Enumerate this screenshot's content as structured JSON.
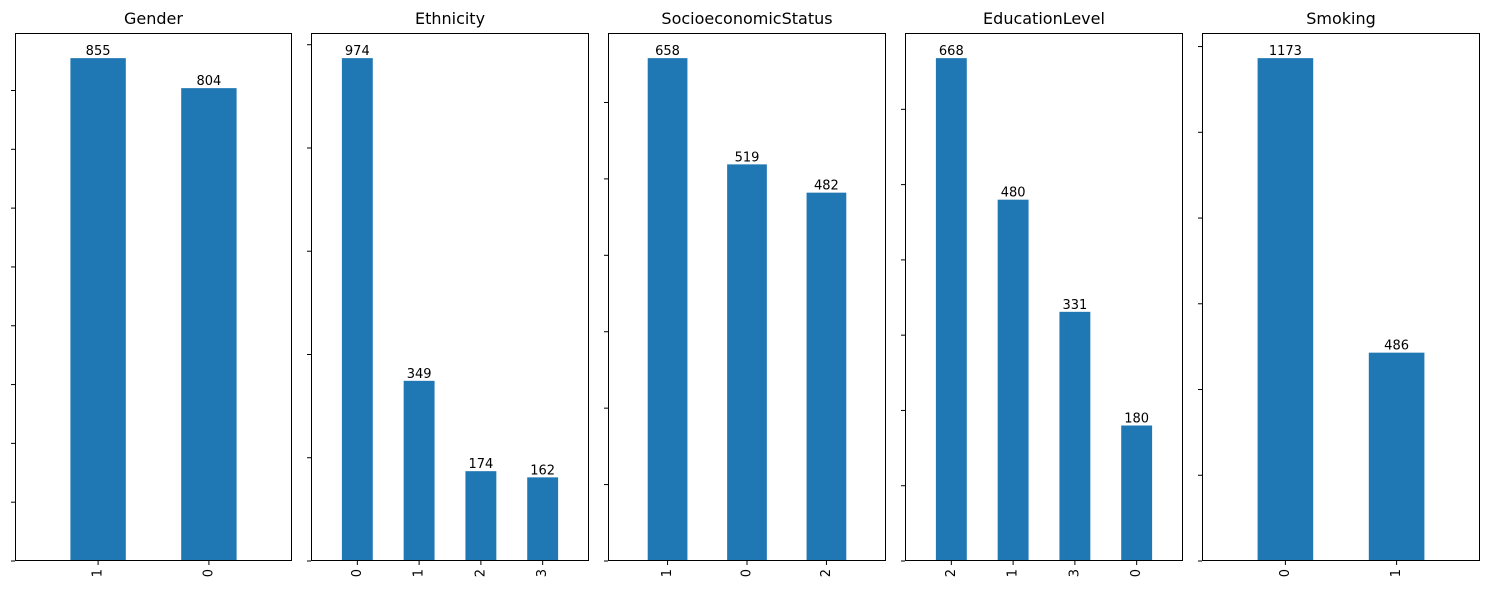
{
  "chart_data": [
    {
      "type": "bar",
      "title": "Gender",
      "categories": [
        "1",
        "0"
      ],
      "values": [
        855,
        804
      ],
      "ylim": [
        0,
        897.75
      ],
      "yticks": [
        0,
        100,
        200,
        300,
        400,
        500,
        600,
        700,
        800
      ],
      "xlabel": "",
      "ylabel": "",
      "grid": false,
      "color": "#1f77b4"
    },
    {
      "type": "bar",
      "title": "Ethnicity",
      "categories": [
        "0",
        "1",
        "2",
        "3"
      ],
      "values": [
        974,
        349,
        174,
        162
      ],
      "ylim": [
        0,
        1022.7
      ],
      "yticks": [
        0,
        200,
        400,
        600,
        800,
        1000
      ],
      "xlabel": "",
      "ylabel": "",
      "grid": false,
      "color": "#1f77b4"
    },
    {
      "type": "bar",
      "title": "SocioeconomicStatus",
      "categories": [
        "1",
        "0",
        "2"
      ],
      "values": [
        658,
        519,
        482
      ],
      "ylim": [
        0,
        690.9
      ],
      "yticks": [
        0,
        100,
        200,
        300,
        400,
        500,
        600
      ],
      "xlabel": "",
      "ylabel": "",
      "grid": false,
      "color": "#1f77b4"
    },
    {
      "type": "bar",
      "title": "EducationLevel",
      "categories": [
        "2",
        "1",
        "3",
        "0"
      ],
      "values": [
        668,
        480,
        331,
        180
      ],
      "ylim": [
        0,
        701.4
      ],
      "yticks": [
        0,
        100,
        200,
        300,
        400,
        500,
        600
      ],
      "xlabel": "",
      "ylabel": "",
      "grid": false,
      "color": "#1f77b4"
    },
    {
      "type": "bar",
      "title": "Smoking",
      "categories": [
        "0",
        "1"
      ],
      "values": [
        1173,
        486
      ],
      "ylim": [
        0,
        1231.65
      ],
      "yticks": [
        0,
        200,
        400,
        600,
        800,
        1000,
        1200
      ],
      "xlabel": "",
      "ylabel": "",
      "grid": false,
      "color": "#1f77b4"
    }
  ]
}
